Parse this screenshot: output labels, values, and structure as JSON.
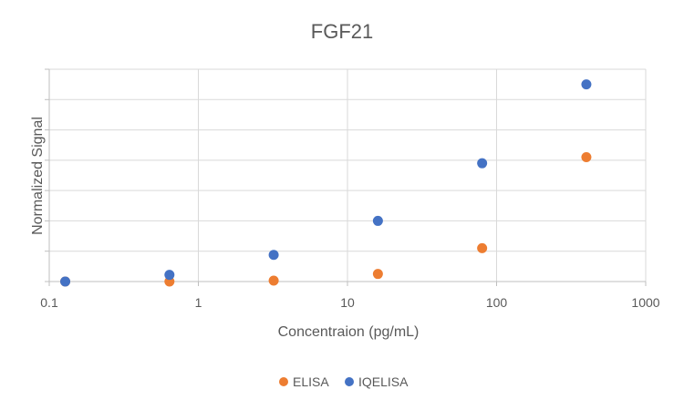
{
  "chart_data": {
    "type": "scatter",
    "title": "FGF21",
    "xlabel": "Concentraion (pg/mL)",
    "ylabel": "Normalized Signal",
    "x_scale": "log",
    "xlim": [
      0.1,
      1000
    ],
    "x_ticks": [
      0.1,
      1,
      10,
      100,
      1000
    ],
    "x_tick_labels": [
      "0.1",
      "1",
      "10",
      "100",
      "1000"
    ],
    "ylim": [
      0,
      7
    ],
    "y_grid_count": 7,
    "y_tick_labels_shown": false,
    "grid": true,
    "legend_position": "bottom",
    "series": [
      {
        "name": "ELISA",
        "color": "#ED7D31",
        "x": [
          0.128,
          0.64,
          3.2,
          16,
          80,
          400
        ],
        "y": [
          0.0,
          0.0,
          0.03,
          0.25,
          1.1,
          4.1
        ]
      },
      {
        "name": "IQELISA",
        "color": "#4472C4",
        "x": [
          0.128,
          0.64,
          3.2,
          16,
          80,
          400
        ],
        "y": [
          0.0,
          0.22,
          0.88,
          2.0,
          3.9,
          6.5
        ]
      }
    ]
  }
}
